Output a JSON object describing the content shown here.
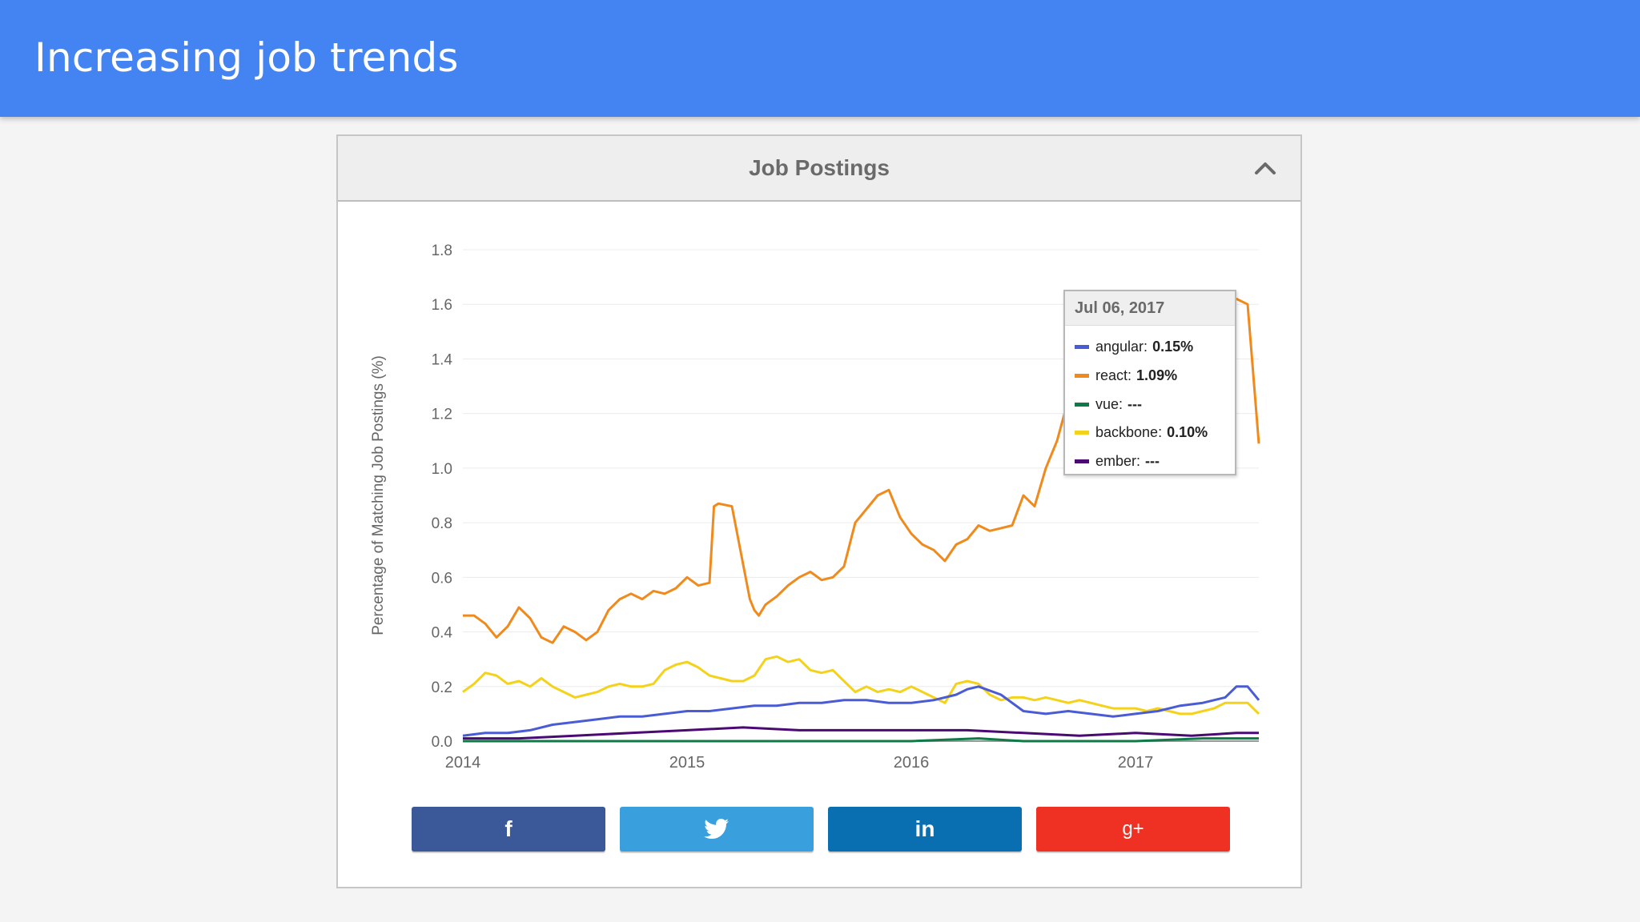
{
  "slide": {
    "title": "Increasing job trends"
  },
  "panel": {
    "title": "Job Postings",
    "collapse_icon": "chevron-up-icon"
  },
  "tooltip": {
    "date": "Jul 06, 2017",
    "rows": [
      {
        "name": "angular",
        "value": "0.15%",
        "color": "#4a5bd6"
      },
      {
        "name": "react",
        "value": "1.09%",
        "color": "#f08a1c"
      },
      {
        "name": "vue",
        "value": "---",
        "color": "#0f7a47"
      },
      {
        "name": "backbone",
        "value": "0.10%",
        "color": "#f5d21a"
      },
      {
        "name": "ember",
        "value": "---",
        "color": "#4b0a73"
      }
    ]
  },
  "share": [
    {
      "name": "facebook",
      "icon": "facebook-icon",
      "glyph": "f",
      "color": "#3b5998"
    },
    {
      "name": "twitter",
      "icon": "twitter-icon",
      "glyph": "",
      "color": "#3aa0dd"
    },
    {
      "name": "linkedin",
      "icon": "linkedin-icon",
      "glyph": "in",
      "color": "#0a6fb0"
    },
    {
      "name": "google-plus",
      "icon": "google-plus-icon",
      "glyph": "g+",
      "color": "#ef3124"
    }
  ],
  "chart_data": {
    "type": "line",
    "title": "",
    "xlabel": "",
    "ylabel": "Percentage of Matching Job Postings (%)",
    "ylim": [
      0,
      1.8
    ],
    "xlim": [
      2014.0,
      2017.55
    ],
    "yticks": [
      "0.0",
      "0.2",
      "0.4",
      "0.6",
      "0.8",
      "1.0",
      "1.2",
      "1.4",
      "1.6",
      "1.8"
    ],
    "xticks": [
      "2014",
      "2015",
      "2016",
      "2017"
    ],
    "grid": true,
    "series": [
      {
        "name": "angular",
        "color": "#4a5bd6",
        "x": [
          2014.0,
          2014.1,
          2014.2,
          2014.3,
          2014.4,
          2014.5,
          2014.6,
          2014.7,
          2014.8,
          2014.9,
          2015.0,
          2015.1,
          2015.2,
          2015.3,
          2015.4,
          2015.5,
          2015.6,
          2015.7,
          2015.8,
          2015.9,
          2016.0,
          2016.1,
          2016.2,
          2016.25,
          2016.3,
          2016.4,
          2016.5,
          2016.6,
          2016.7,
          2016.8,
          2016.9,
          2017.0,
          2017.1,
          2017.2,
          2017.3,
          2017.4,
          2017.45,
          2017.5,
          2017.55
        ],
        "values": [
          0.02,
          0.03,
          0.03,
          0.04,
          0.06,
          0.07,
          0.08,
          0.09,
          0.09,
          0.1,
          0.11,
          0.11,
          0.12,
          0.13,
          0.13,
          0.14,
          0.14,
          0.15,
          0.15,
          0.14,
          0.14,
          0.15,
          0.17,
          0.19,
          0.2,
          0.17,
          0.11,
          0.1,
          0.11,
          0.1,
          0.09,
          0.1,
          0.11,
          0.13,
          0.14,
          0.16,
          0.2,
          0.2,
          0.15
        ]
      },
      {
        "name": "react",
        "color": "#f08a1c",
        "x": [
          2014.0,
          2014.05,
          2014.1,
          2014.15,
          2014.2,
          2014.25,
          2014.3,
          2014.35,
          2014.4,
          2014.45,
          2014.5,
          2014.55,
          2014.6,
          2014.65,
          2014.7,
          2014.75,
          2014.8,
          2014.85,
          2014.9,
          2014.95,
          2015.0,
          2015.05,
          2015.1,
          2015.12,
          2015.14,
          2015.2,
          2015.28,
          2015.3,
          2015.32,
          2015.35,
          2015.4,
          2015.45,
          2015.5,
          2015.55,
          2015.6,
          2015.65,
          2015.7,
          2015.75,
          2015.8,
          2015.85,
          2015.9,
          2015.95,
          2016.0,
          2016.05,
          2016.1,
          2016.15,
          2016.2,
          2016.25,
          2016.3,
          2016.35,
          2016.4,
          2016.45,
          2016.5,
          2016.55,
          2016.6,
          2016.65,
          2016.7,
          2016.75,
          2016.8,
          2016.85,
          2016.9,
          2016.95,
          2017.0,
          2017.05,
          2017.1,
          2017.15,
          2017.2,
          2017.25,
          2017.3,
          2017.35,
          2017.4,
          2017.45,
          2017.5,
          2017.55
        ],
        "values": [
          0.46,
          0.46,
          0.43,
          0.38,
          0.42,
          0.49,
          0.45,
          0.38,
          0.36,
          0.42,
          0.4,
          0.37,
          0.4,
          0.48,
          0.52,
          0.54,
          0.52,
          0.55,
          0.54,
          0.56,
          0.6,
          0.57,
          0.58,
          0.86,
          0.87,
          0.86,
          0.52,
          0.48,
          0.46,
          0.5,
          0.53,
          0.57,
          0.6,
          0.62,
          0.59,
          0.6,
          0.64,
          0.8,
          0.85,
          0.9,
          0.92,
          0.82,
          0.76,
          0.72,
          0.7,
          0.66,
          0.72,
          0.74,
          0.79,
          0.77,
          0.78,
          0.79,
          0.9,
          0.86,
          1.0,
          1.1,
          1.25,
          1.5,
          1.61,
          1.58,
          1.6,
          1.62,
          1.6,
          1.62,
          1.61,
          1.6,
          1.62,
          1.61,
          1.6,
          1.63,
          1.61,
          1.62,
          1.6,
          1.09
        ]
      },
      {
        "name": "vue",
        "color": "#0f7a47",
        "x": [
          2014.0,
          2014.5,
          2015.0,
          2015.5,
          2016.0,
          2016.3,
          2016.5,
          2016.8,
          2017.0,
          2017.3,
          2017.55
        ],
        "values": [
          0.0,
          0.0,
          0.0,
          0.0,
          0.0,
          0.01,
          0.0,
          0.0,
          0.0,
          0.01,
          0.01
        ]
      },
      {
        "name": "backbone",
        "color": "#f5d21a",
        "x": [
          2014.0,
          2014.05,
          2014.1,
          2014.15,
          2014.2,
          2014.25,
          2014.3,
          2014.35,
          2014.4,
          2014.45,
          2014.5,
          2014.55,
          2014.6,
          2014.65,
          2014.7,
          2014.75,
          2014.8,
          2014.85,
          2014.9,
          2014.95,
          2015.0,
          2015.05,
          2015.1,
          2015.15,
          2015.2,
          2015.25,
          2015.3,
          2015.35,
          2015.4,
          2015.45,
          2015.5,
          2015.55,
          2015.6,
          2015.65,
          2015.7,
          2015.75,
          2015.8,
          2015.85,
          2015.9,
          2015.95,
          2016.0,
          2016.05,
          2016.1,
          2016.15,
          2016.2,
          2016.25,
          2016.3,
          2016.35,
          2016.4,
          2016.45,
          2016.5,
          2016.55,
          2016.6,
          2016.65,
          2016.7,
          2016.75,
          2016.8,
          2016.85,
          2016.9,
          2016.95,
          2017.0,
          2017.05,
          2017.1,
          2017.15,
          2017.2,
          2017.25,
          2017.3,
          2017.35,
          2017.4,
          2017.45,
          2017.5,
          2017.55
        ],
        "values": [
          0.18,
          0.21,
          0.25,
          0.24,
          0.21,
          0.22,
          0.2,
          0.23,
          0.2,
          0.18,
          0.16,
          0.17,
          0.18,
          0.2,
          0.21,
          0.2,
          0.2,
          0.21,
          0.26,
          0.28,
          0.29,
          0.27,
          0.24,
          0.23,
          0.22,
          0.22,
          0.24,
          0.3,
          0.31,
          0.29,
          0.3,
          0.26,
          0.25,
          0.26,
          0.22,
          0.18,
          0.2,
          0.18,
          0.19,
          0.18,
          0.2,
          0.18,
          0.16,
          0.14,
          0.21,
          0.22,
          0.21,
          0.17,
          0.15,
          0.16,
          0.16,
          0.15,
          0.16,
          0.15,
          0.14,
          0.15,
          0.14,
          0.13,
          0.12,
          0.12,
          0.12,
          0.11,
          0.12,
          0.11,
          0.1,
          0.1,
          0.11,
          0.12,
          0.14,
          0.14,
          0.14,
          0.1
        ]
      },
      {
        "name": "ember",
        "color": "#4b0a73",
        "x": [
          2014.0,
          2014.25,
          2014.5,
          2014.75,
          2015.0,
          2015.25,
          2015.5,
          2015.75,
          2016.0,
          2016.25,
          2016.5,
          2016.75,
          2017.0,
          2017.25,
          2017.45,
          2017.55
        ],
        "values": [
          0.01,
          0.01,
          0.02,
          0.03,
          0.04,
          0.05,
          0.04,
          0.04,
          0.04,
          0.04,
          0.03,
          0.02,
          0.03,
          0.02,
          0.03,
          0.03
        ]
      }
    ]
  }
}
